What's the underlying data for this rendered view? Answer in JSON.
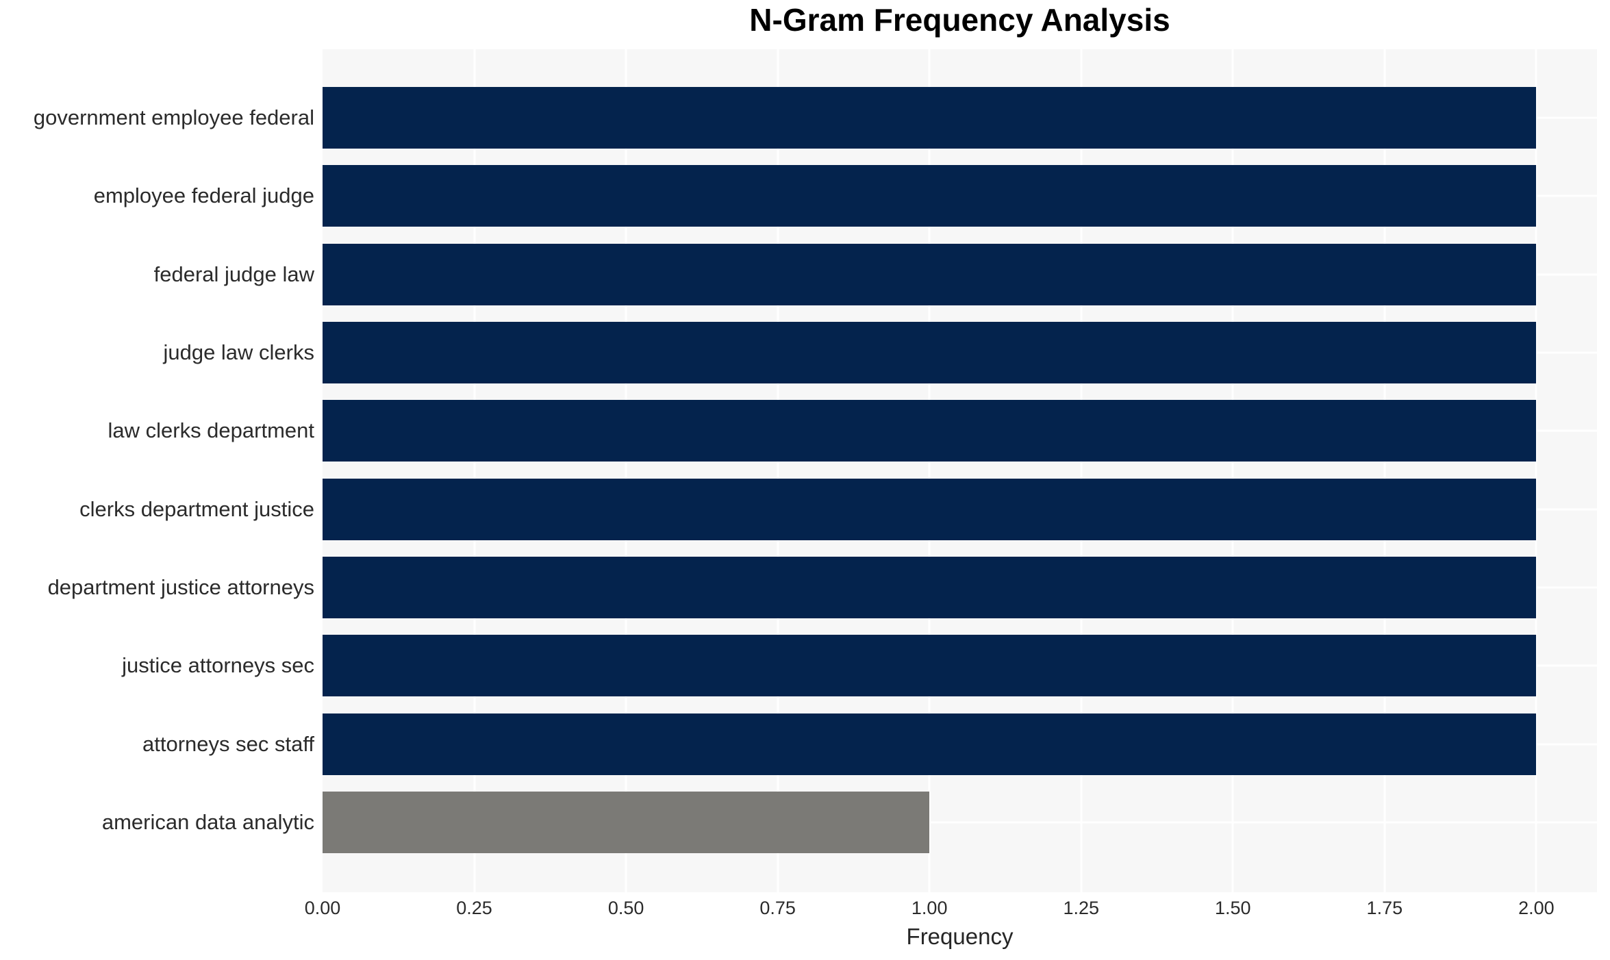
{
  "chart_data": {
    "type": "bar",
    "orientation": "horizontal",
    "title": "N-Gram Frequency Analysis",
    "xlabel": "Frequency",
    "ylabel": "",
    "categories": [
      "government employee federal",
      "employee federal judge",
      "federal judge law",
      "judge law clerks",
      "law clerks department",
      "clerks department justice",
      "department justice attorneys",
      "justice attorneys sec",
      "attorneys sec staff",
      "american data analytic"
    ],
    "values": [
      2,
      2,
      2,
      2,
      2,
      2,
      2,
      2,
      2,
      1
    ],
    "bar_colors": [
      "#04234d",
      "#04234d",
      "#04234d",
      "#04234d",
      "#04234d",
      "#04234d",
      "#04234d",
      "#04234d",
      "#04234d",
      "#7b7a76"
    ],
    "xlim": [
      0,
      2.1
    ],
    "xticks": [
      "0.00",
      "0.25",
      "0.50",
      "0.75",
      "1.00",
      "1.25",
      "1.50",
      "1.75",
      "2.00"
    ],
    "xtick_values": [
      0,
      0.25,
      0.5,
      0.75,
      1.0,
      1.25,
      1.5,
      1.75,
      2.0
    ],
    "grid": true,
    "legend": "none",
    "colors": {
      "plot_background": "#f7f7f7",
      "gridline": "#ffffff",
      "axis_text": "#2b2b2b",
      "title_text": "#000000"
    }
  }
}
